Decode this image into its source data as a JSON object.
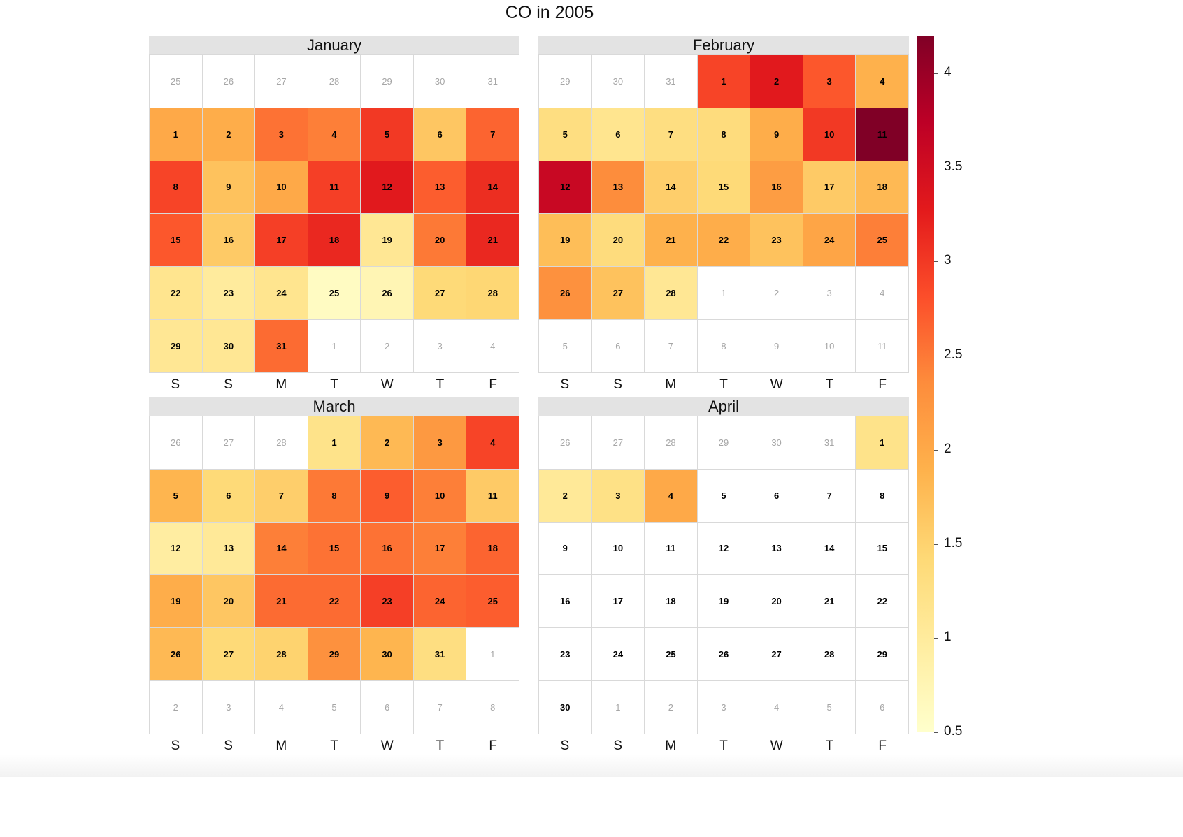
{
  "title": "CO in 2005",
  "weekdays": [
    "S",
    "S",
    "M",
    "T",
    "W",
    "T",
    "F"
  ],
  "colors": {
    "scale": [
      "#ffffcc",
      "#ffeda0",
      "#fed976",
      "#feb24c",
      "#fd8d3c",
      "#fc4e2a",
      "#e31a1c",
      "#bd0026",
      "#800026"
    ],
    "strip_bg": "#e3e3e3",
    "grid_line": "#d9d9d9",
    "outside_text": "#a6a6a6"
  },
  "chart_data": {
    "type": "heatmap",
    "title": "CO in 2005",
    "layout": "calendar, weeks as rows, weekdays as columns (S S M T W T F)",
    "color_scale": {
      "palette": "YlOrRd",
      "min": 0.5,
      "max": 4.2,
      "ticks": [
        0.5,
        1,
        1.5,
        2,
        2.5,
        3,
        3.5,
        4
      ]
    },
    "months": [
      {
        "name": "January",
        "cells": [
          [
            {
              "d": "25"
            },
            {
              "d": "26"
            },
            {
              "d": "27"
            },
            {
              "d": "28"
            },
            {
              "d": "29"
            },
            {
              "d": "30"
            },
            {
              "d": "31"
            }
          ],
          [
            {
              "d": "1",
              "v": 2.0
            },
            {
              "d": "2",
              "v": 1.95
            },
            {
              "d": "3",
              "v": 2.55
            },
            {
              "d": "4",
              "v": 2.45
            },
            {
              "d": "5",
              "v": 3.0
            },
            {
              "d": "6",
              "v": 1.65
            },
            {
              "d": "7",
              "v": 2.65
            }
          ],
          [
            {
              "d": "8",
              "v": 2.9
            },
            {
              "d": "9",
              "v": 1.7
            },
            {
              "d": "10",
              "v": 2.0
            },
            {
              "d": "11",
              "v": 2.95
            },
            {
              "d": "12",
              "v": 3.3
            },
            {
              "d": "13",
              "v": 2.7
            },
            {
              "d": "14",
              "v": 3.1
            }
          ],
          [
            {
              "d": "15",
              "v": 2.75
            },
            {
              "d": "16",
              "v": 1.6
            },
            {
              "d": "17",
              "v": 2.95
            },
            {
              "d": "18",
              "v": 3.15
            },
            {
              "d": "19",
              "v": 1.1
            },
            {
              "d": "20",
              "v": 2.5
            },
            {
              "d": "21",
              "v": 3.15
            }
          ],
          [
            {
              "d": "22",
              "v": 1.15
            },
            {
              "d": "23",
              "v": 1.0
            },
            {
              "d": "24",
              "v": 1.15
            },
            {
              "d": "25",
              "v": 0.6
            },
            {
              "d": "26",
              "v": 0.75
            },
            {
              "d": "27",
              "v": 1.4
            },
            {
              "d": "28",
              "v": 1.45
            }
          ],
          [
            {
              "d": "29",
              "v": 1.1
            },
            {
              "d": "30",
              "v": 1.1
            },
            {
              "d": "31",
              "v": 2.6
            },
            {
              "d": "1"
            },
            {
              "d": "2"
            },
            {
              "d": "3"
            },
            {
              "d": "4"
            }
          ]
        ]
      },
      {
        "name": "February",
        "cells": [
          [
            {
              "d": "29"
            },
            {
              "d": "30"
            },
            {
              "d": "31"
            },
            {
              "d": "1",
              "v": 2.9
            },
            {
              "d": "2",
              "v": 3.3
            },
            {
              "d": "3",
              "v": 2.75
            },
            {
              "d": "4",
              "v": 1.9
            }
          ],
          [
            {
              "d": "5",
              "v": 1.3
            },
            {
              "d": "6",
              "v": 1.15
            },
            {
              "d": "7",
              "v": 1.3
            },
            {
              "d": "8",
              "v": 1.35
            },
            {
              "d": "9",
              "v": 1.95
            },
            {
              "d": "10",
              "v": 3.0
            },
            {
              "d": "11",
              "v": 4.2
            }
          ],
          [
            {
              "d": "12",
              "v": 3.6
            },
            {
              "d": "13",
              "v": 2.35
            },
            {
              "d": "14",
              "v": 1.55
            },
            {
              "d": "15",
              "v": 1.4
            },
            {
              "d": "16",
              "v": 2.15
            },
            {
              "d": "17",
              "v": 1.6
            },
            {
              "d": "18",
              "v": 1.8
            }
          ],
          [
            {
              "d": "19",
              "v": 1.75
            },
            {
              "d": "20",
              "v": 1.35
            },
            {
              "d": "21",
              "v": 1.9
            },
            {
              "d": "22",
              "v": 1.95
            },
            {
              "d": "23",
              "v": 1.7
            },
            {
              "d": "24",
              "v": 2.05
            },
            {
              "d": "25",
              "v": 2.45
            }
          ],
          [
            {
              "d": "26",
              "v": 2.3
            },
            {
              "d": "27",
              "v": 1.7
            },
            {
              "d": "28",
              "v": 1.1
            },
            {
              "d": "1"
            },
            {
              "d": "2"
            },
            {
              "d": "3"
            },
            {
              "d": "4"
            }
          ],
          [
            {
              "d": "5"
            },
            {
              "d": "6"
            },
            {
              "d": "7"
            },
            {
              "d": "8"
            },
            {
              "d": "9"
            },
            {
              "d": "10"
            },
            {
              "d": "11"
            }
          ]
        ]
      },
      {
        "name": "March",
        "cells": [
          [
            {
              "d": "26"
            },
            {
              "d": "27"
            },
            {
              "d": "28"
            },
            {
              "d": "1",
              "v": 1.2
            },
            {
              "d": "2",
              "v": 1.8
            },
            {
              "d": "3",
              "v": 2.2
            },
            {
              "d": "4",
              "v": 2.9
            }
          ],
          [
            {
              "d": "5",
              "v": 1.85
            },
            {
              "d": "6",
              "v": 1.4
            },
            {
              "d": "7",
              "v": 1.55
            },
            {
              "d": "8",
              "v": 2.5
            },
            {
              "d": "9",
              "v": 2.7
            },
            {
              "d": "10",
              "v": 2.45
            },
            {
              "d": "11",
              "v": 1.6
            }
          ],
          [
            {
              "d": "12",
              "v": 0.95
            },
            {
              "d": "13",
              "v": 1.05
            },
            {
              "d": "14",
              "v": 2.45
            },
            {
              "d": "15",
              "v": 2.55
            },
            {
              "d": "16",
              "v": 2.55
            },
            {
              "d": "17",
              "v": 2.45
            },
            {
              "d": "18",
              "v": 2.65
            }
          ],
          [
            {
              "d": "19",
              "v": 1.95
            },
            {
              "d": "20",
              "v": 1.65
            },
            {
              "d": "21",
              "v": 2.6
            },
            {
              "d": "22",
              "v": 2.6
            },
            {
              "d": "23",
              "v": 2.95
            },
            {
              "d": "24",
              "v": 2.65
            },
            {
              "d": "25",
              "v": 2.7
            }
          ],
          [
            {
              "d": "26",
              "v": 1.8
            },
            {
              "d": "27",
              "v": 1.4
            },
            {
              "d": "28",
              "v": 1.5
            },
            {
              "d": "29",
              "v": 2.3
            },
            {
              "d": "30",
              "v": 1.85
            },
            {
              "d": "31",
              "v": 1.3
            },
            {
              "d": "1"
            }
          ],
          [
            {
              "d": "2"
            },
            {
              "d": "3"
            },
            {
              "d": "4"
            },
            {
              "d": "5"
            },
            {
              "d": "6"
            },
            {
              "d": "7"
            },
            {
              "d": "8"
            }
          ]
        ]
      },
      {
        "name": "April",
        "cells": [
          [
            {
              "d": "26"
            },
            {
              "d": "27"
            },
            {
              "d": "28"
            },
            {
              "d": "29"
            },
            {
              "d": "30"
            },
            {
              "d": "31"
            },
            {
              "d": "1",
              "v": 1.2
            }
          ],
          [
            {
              "d": "2",
              "v": 1.05
            },
            {
              "d": "3",
              "v": 1.25
            },
            {
              "d": "4",
              "v": 2.0
            },
            {
              "d": "5",
              "w": 1
            },
            {
              "d": "6",
              "w": 1
            },
            {
              "d": "7",
              "w": 1
            },
            {
              "d": "8",
              "w": 1
            }
          ],
          [
            {
              "d": "9",
              "w": 1
            },
            {
              "d": "10",
              "w": 1
            },
            {
              "d": "11",
              "w": 1
            },
            {
              "d": "12",
              "w": 1
            },
            {
              "d": "13",
              "w": 1
            },
            {
              "d": "14",
              "w": 1
            },
            {
              "d": "15",
              "w": 1
            }
          ],
          [
            {
              "d": "16",
              "w": 1
            },
            {
              "d": "17",
              "w": 1
            },
            {
              "d": "18",
              "w": 1
            },
            {
              "d": "19",
              "w": 1
            },
            {
              "d": "20",
              "w": 1
            },
            {
              "d": "21",
              "w": 1
            },
            {
              "d": "22",
              "w": 1
            }
          ],
          [
            {
              "d": "23",
              "w": 1
            },
            {
              "d": "24",
              "w": 1
            },
            {
              "d": "25",
              "w": 1
            },
            {
              "d": "26",
              "w": 1
            },
            {
              "d": "27",
              "w": 1
            },
            {
              "d": "28",
              "w": 1
            },
            {
              "d": "29",
              "w": 1
            }
          ],
          [
            {
              "d": "30",
              "w": 1
            },
            {
              "d": "1"
            },
            {
              "d": "2"
            },
            {
              "d": "3"
            },
            {
              "d": "4"
            },
            {
              "d": "5"
            },
            {
              "d": "6"
            }
          ]
        ]
      }
    ]
  }
}
